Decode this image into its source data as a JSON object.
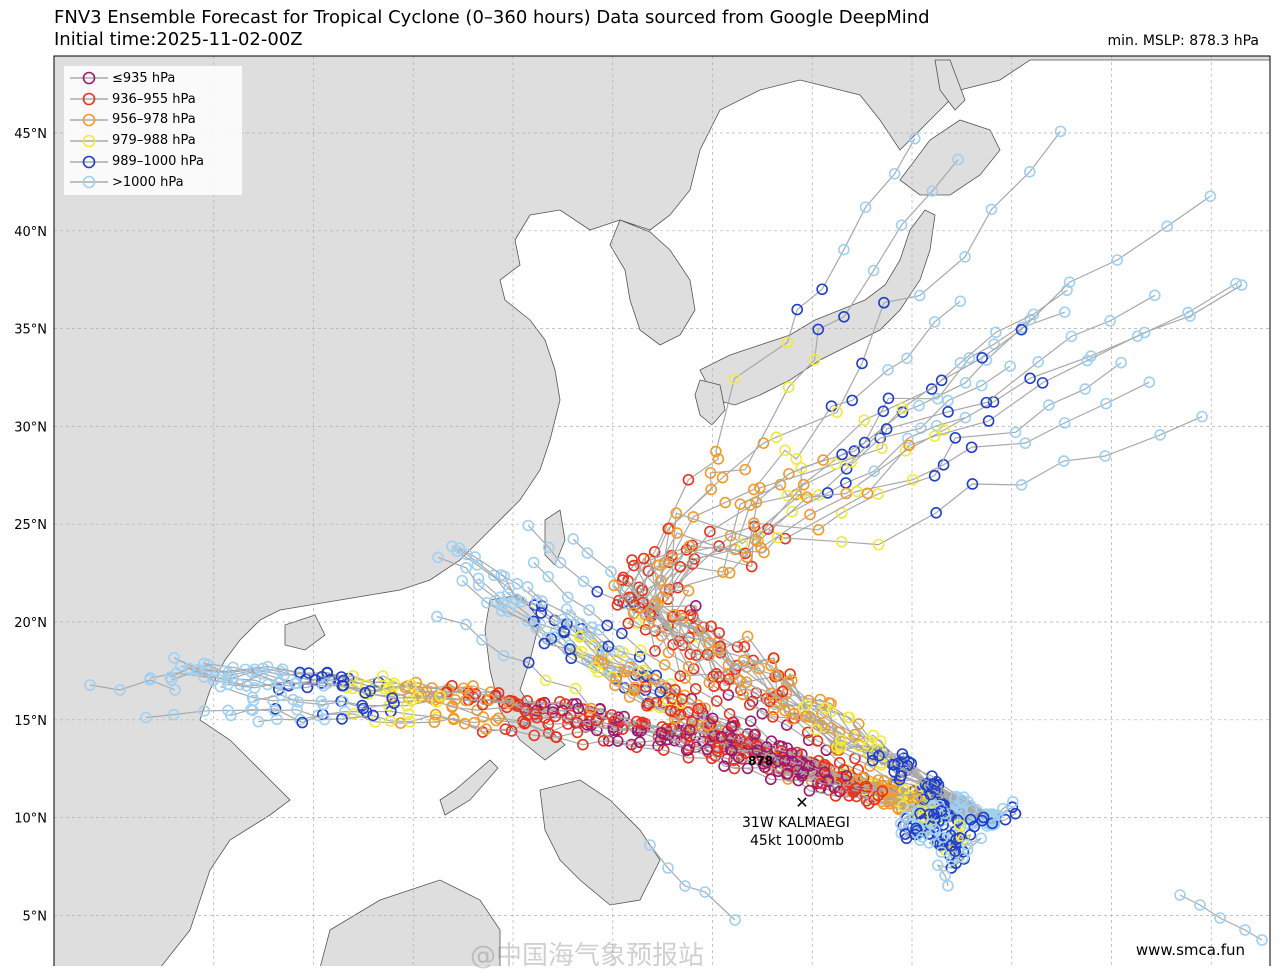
{
  "header": {
    "title_line1": "FNV3 Ensemble Forecast for Tropical Cyclone (0–360 hours) Data sourced from Google DeepMind",
    "title_line2": "Initial time:2025-11-02-00Z",
    "min_mslp": "min. MSLP: 878.3 hPa"
  },
  "legend": {
    "items": [
      {
        "label": "≤935 hPa",
        "color": "#9b1a6e"
      },
      {
        "label": "936–955 hPa",
        "color": "#e8321e"
      },
      {
        "label": "956–978 hPa",
        "color": "#f29b2a"
      },
      {
        "label": "979–988 hPa",
        "color": "#f2ea3a"
      },
      {
        "label": "989–1000 hPa",
        "color": "#1f3fc8"
      },
      {
        "label": ">1000 hPa",
        "color": "#9fd0f5"
      }
    ]
  },
  "axes": {
    "lat_labels": [
      "45°N",
      "40°N",
      "35°N",
      "30°N",
      "25°N",
      "20°N",
      "15°N",
      "10°N",
      "5°N"
    ],
    "lat_values": [
      45,
      40,
      35,
      30,
      25,
      20,
      15,
      10,
      5
    ]
  },
  "storm": {
    "id_name": "31W KALMAEGI",
    "intensity": "45kt 1000mb",
    "min_label": "878"
  },
  "footer": {
    "site": "www.smca.fun",
    "watermark": "@中国海气象预报站"
  },
  "colors": {
    "land": "#dedede",
    "sea": "#ffffff",
    "track": "#a9a9a9",
    "grid": "#b0b0b0"
  }
}
